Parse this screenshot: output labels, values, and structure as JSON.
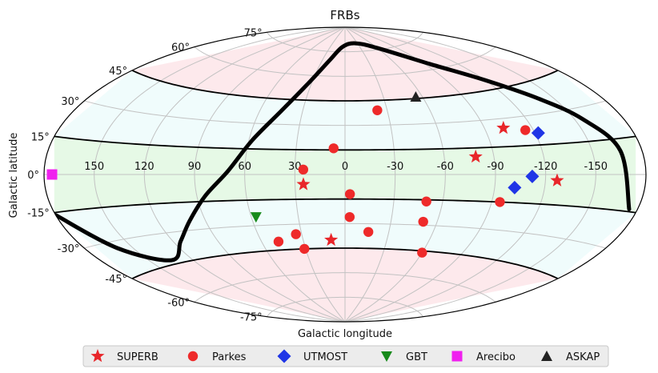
{
  "chart_data": {
    "type": "scatter",
    "projection": "aitoff",
    "title": "FRBs",
    "xlabel": "Galactic longitude",
    "ylabel": "Galactic latitude",
    "grid": true,
    "x_ticks": [
      {
        "value": 150,
        "label": "150"
      },
      {
        "value": 120,
        "label": "120"
      },
      {
        "value": 90,
        "label": "90"
      },
      {
        "value": 60,
        "label": "60"
      },
      {
        "value": 30,
        "label": "30"
      },
      {
        "value": 0,
        "label": "0"
      },
      {
        "value": -30,
        "label": "-30"
      },
      {
        "value": -60,
        "label": "-60"
      },
      {
        "value": -90,
        "label": "-90"
      },
      {
        "value": -120,
        "label": "-120"
      },
      {
        "value": -150,
        "label": "-150"
      }
    ],
    "y_ticks": [
      {
        "value": 75,
        "label": "75°"
      },
      {
        "value": 60,
        "label": "60°"
      },
      {
        "value": 45,
        "label": "45°"
      },
      {
        "value": 30,
        "label": "30°"
      },
      {
        "value": 15,
        "label": "15°"
      },
      {
        "value": 0,
        "label": "0°"
      },
      {
        "value": -15,
        "label": "-15°"
      },
      {
        "value": -30,
        "label": "-30°"
      },
      {
        "value": -45,
        "label": "-45°"
      },
      {
        "value": -60,
        "label": "-60°"
      },
      {
        "value": -75,
        "label": "-75°"
      }
    ],
    "bands": [
      {
        "from": 15,
        "to": -15,
        "color": "#e6f9e6"
      },
      {
        "from": 45,
        "to": 15,
        "color": "#f0fcfc"
      },
      {
        "from": -15,
        "to": -45,
        "color": "#f0fcfc"
      },
      {
        "from": 90,
        "to": 45,
        "color": "#fde9ec"
      },
      {
        "from": -45,
        "to": -90,
        "color": "#fde9ec"
      }
    ],
    "band_edges": [
      45,
      15,
      -15,
      -45
    ],
    "legend_position": "bottom",
    "series": [
      {
        "name": "SUPERB",
        "marker": "star",
        "color": "#e8262a",
        "points": [
          {
            "l": 25,
            "b": -6
          },
          {
            "l": 10,
            "b": -40
          },
          {
            "l": -79,
            "b": 10
          },
          {
            "l": -102,
            "b": 25
          },
          {
            "l": -127,
            "b": -3
          }
        ]
      },
      {
        "name": "Parkes",
        "marker": "circle",
        "color": "#ee2a2a",
        "points": [
          {
            "l": -23,
            "b": 39
          },
          {
            "l": 7,
            "b": 16
          },
          {
            "l": 25,
            "b": 3
          },
          {
            "l": -115,
            "b": 23
          },
          {
            "l": -95,
            "b": -15
          },
          {
            "l": -3,
            "b": -12
          },
          {
            "l": -50,
            "b": -16
          },
          {
            "l": -3,
            "b": -26
          },
          {
            "l": -51,
            "b": -28
          },
          {
            "l": 48,
            "b": -40
          },
          {
            "l": 34,
            "b": -36
          },
          {
            "l": -16,
            "b": -35
          },
          {
            "l": 31,
            "b": -45
          },
          {
            "l": -60,
            "b": -46
          }
        ]
      },
      {
        "name": "UTMOST",
        "marker": "diamond",
        "color": "#1f35e6",
        "points": [
          {
            "l": -122,
            "b": 21
          },
          {
            "l": -112,
            "b": -1
          },
          {
            "l": -102,
            "b": -7
          }
        ]
      },
      {
        "name": "GBT",
        "marker": "triangle_down",
        "color": "#178a1b",
        "points": [
          {
            "l": 57,
            "b": -25
          }
        ]
      },
      {
        "name": "Arecibo",
        "marker": "square",
        "color": "#f020ef",
        "points": [
          {
            "l": 180,
            "b": 0
          }
        ]
      },
      {
        "name": "ASKAP",
        "marker": "triangle_up",
        "color": "#222222",
        "points": [
          {
            "l": -55,
            "b": 46
          }
        ]
      }
    ],
    "boundary_curve": {
      "color": "#000000",
      "points": [
        {
          "l": -175,
          "b": -14
        },
        {
          "l": -167,
          "b": 10
        },
        {
          "l": -155,
          "b": 25
        },
        {
          "l": -140,
          "b": 37
        },
        {
          "l": -120,
          "b": 50
        },
        {
          "l": -95,
          "b": 63
        },
        {
          "l": -60,
          "b": 76
        },
        {
          "l": -25,
          "b": 80
        },
        {
          "l": 5,
          "b": 78
        },
        {
          "l": 20,
          "b": 70
        },
        {
          "l": 33,
          "b": 55
        },
        {
          "l": 45,
          "b": 38
        },
        {
          "l": 58,
          "b": 20
        },
        {
          "l": 70,
          "b": 2
        },
        {
          "l": 85,
          "b": -12
        },
        {
          "l": 100,
          "b": -25
        },
        {
          "l": 115,
          "b": -35
        },
        {
          "l": 135,
          "b": -43
        },
        {
          "l": 160,
          "b": -33
        },
        {
          "l": 180,
          "b": -16
        }
      ]
    }
  }
}
